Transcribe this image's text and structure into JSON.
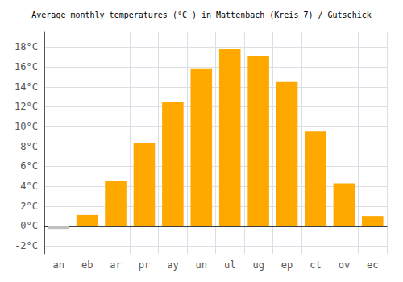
{
  "chart_data": {
    "type": "bar",
    "title": "Average monthly temperatures (°C ) in Mattenbach (Kreis 7) / Gutschick",
    "categories": [
      "an",
      "eb",
      "ar",
      "pr",
      "ay",
      "un",
      "ul",
      "ug",
      "ep",
      "ct",
      "ov",
      "ec"
    ],
    "values": [
      -0.3,
      1.1,
      4.5,
      8.3,
      12.5,
      15.8,
      17.8,
      17.1,
      14.5,
      9.5,
      4.3,
      1.0
    ],
    "colors": [
      "#C0C0C0",
      "#FFA800",
      "#FFA800",
      "#FFA800",
      "#FFA800",
      "#FFA800",
      "#FFA800",
      "#FFA800",
      "#FFA800",
      "#FFA800",
      "#FFA800",
      "#FFA800"
    ],
    "ylim": [
      -2.8,
      19.5
    ],
    "yticks": [
      {
        "value": -2,
        "label": "-2°C"
      },
      {
        "value": 0,
        "label": "0°C"
      },
      {
        "value": 2,
        "label": "2°C"
      },
      {
        "value": 4,
        "label": "4°C"
      },
      {
        "value": 6,
        "label": "6°C"
      },
      {
        "value": 8,
        "label": "8°C"
      },
      {
        "value": 10,
        "label": "10°C"
      },
      {
        "value": 12,
        "label": "12°C"
      },
      {
        "value": 14,
        "label": "14°C"
      },
      {
        "value": 16,
        "label": "16°C"
      },
      {
        "value": 18,
        "label": "18°C"
      }
    ],
    "grid": true
  }
}
